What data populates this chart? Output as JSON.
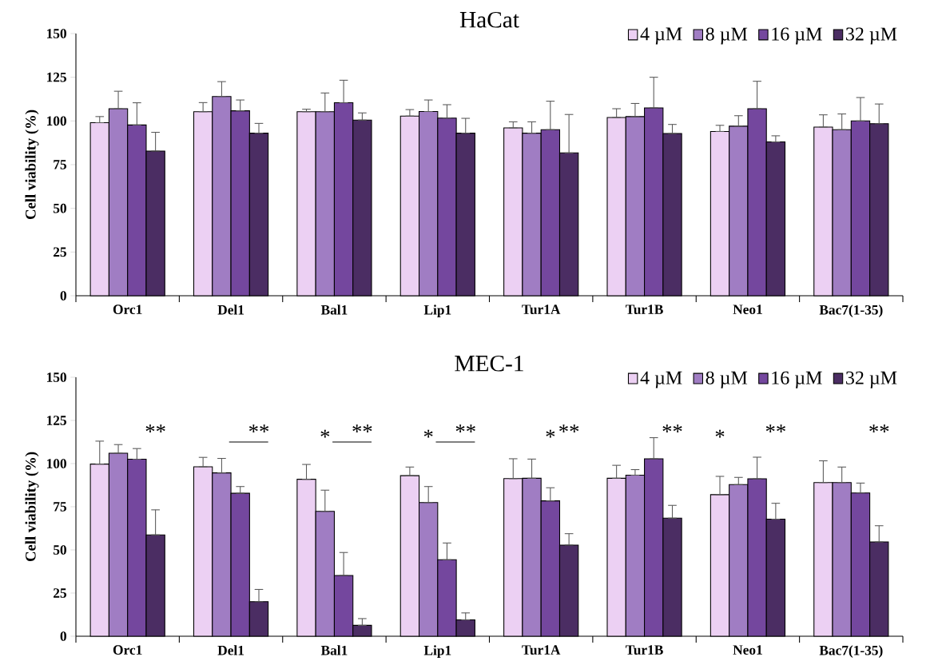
{
  "chart_data": [
    {
      "type": "bar",
      "title": "HaCat",
      "ylabel": "Cell viability (%)",
      "categories": [
        "Orc1",
        "Del1",
        "Bal1",
        "Lip1",
        "Tur1A",
        "Tur1B",
        "Neo1",
        "Bac7(1-35)"
      ],
      "series": [
        {
          "name": "4 µM",
          "color": "#ecd0f3",
          "values": [
            99,
            105.3,
            105.3,
            102.8,
            96,
            102,
            94,
            96.5
          ],
          "errors": [
            [
              99,
              102.5
            ],
            [
              105.3,
              110.5
            ],
            [
              105.3,
              106.7
            ],
            [
              102.8,
              106.5
            ],
            [
              96,
              99.5
            ],
            [
              102,
              107
            ],
            [
              94,
              97.5
            ],
            [
              96.5,
              103.5
            ]
          ]
        },
        {
          "name": "8 µM",
          "color": "#a07dc3",
          "values": [
            107,
            114,
            105.3,
            105.4,
            93,
            102.5,
            97,
            95
          ],
          "errors": [
            [
              107,
              117
            ],
            [
              114,
              122.5
            ],
            [
              105.3,
              116
            ],
            [
              105.4,
              112
            ],
            [
              93,
              99.5
            ],
            [
              102.5,
              110
            ],
            [
              97,
              103
            ],
            [
              95,
              104
            ]
          ]
        },
        {
          "name": "16 µM",
          "color": "#74479e",
          "values": [
            97.7,
            105.8,
            110.4,
            101.6,
            95,
            107.5,
            107,
            100
          ],
          "errors": [
            [
              97.7,
              110.4
            ],
            [
              105.8,
              112
            ],
            [
              110.4,
              123.3
            ],
            [
              101.6,
              109.3
            ],
            [
              95,
              111.3
            ],
            [
              107.5,
              125
            ],
            [
              107,
              122.7
            ],
            [
              100,
              113.4
            ]
          ]
        },
        {
          "name": "32 µM",
          "color": "#4b2d63",
          "values": [
            82.8,
            93,
            100.5,
            93,
            81.7,
            92.8,
            88,
            98.4
          ],
          "errors": [
            [
              82.8,
              93.5
            ],
            [
              93,
              98.6
            ],
            [
              100.5,
              104.6
            ],
            [
              93,
              101.5
            ],
            [
              81.7,
              103.7
            ],
            [
              92.8,
              98
            ],
            [
              88,
              91.5
            ],
            [
              98.4,
              109.7
            ]
          ]
        }
      ],
      "ylim": [
        0,
        150
      ],
      "yticks": [
        0,
        25,
        50,
        75,
        100,
        125,
        150
      ],
      "legend": "top right"
    },
    {
      "type": "bar",
      "title": "MEC-1",
      "ylabel": "Cell viability (%)",
      "categories": [
        "Orc1",
        "Del1",
        "Bal1",
        "Lip1",
        "Tur1A",
        "Tur1B",
        "Neo1",
        "Bac7(1-35)"
      ],
      "series": [
        {
          "name": "4 µM",
          "color": "#ecd0f3",
          "values": [
            99.7,
            98.1,
            90.9,
            93,
            91.3,
            91.5,
            82,
            89
          ],
          "errors": [
            [
              99.7,
              113
            ],
            [
              98.1,
              103.6
            ],
            [
              90.9,
              99.5
            ],
            [
              93,
              98
            ],
            [
              91.3,
              102.8
            ],
            [
              91.5,
              99
            ],
            [
              82,
              92.6
            ],
            [
              89,
              101.6
            ]
          ]
        },
        {
          "name": "8 µM",
          "color": "#a07dc3",
          "values": [
            106,
            94.6,
            72.3,
            77.4,
            91.5,
            93.3,
            87.8,
            89
          ],
          "errors": [
            [
              106,
              111
            ],
            [
              94.6,
              103
            ],
            [
              72.3,
              84.6
            ],
            [
              77.4,
              86.7
            ],
            [
              91.5,
              102.6
            ],
            [
              93.3,
              96.5
            ],
            [
              87.8,
              92
            ],
            [
              89,
              98
            ]
          ]
        },
        {
          "name": "16 µM",
          "color": "#74479e",
          "values": [
            102.5,
            82.8,
            35.2,
            44.3,
            78.4,
            102.8,
            91.2,
            83
          ],
          "errors": [
            [
              102.5,
              108.7
            ],
            [
              82.8,
              86.7
            ],
            [
              35.2,
              48.5
            ],
            [
              44.3,
              54
            ],
            [
              78.4,
              86
            ],
            [
              102.8,
              115
            ],
            [
              91.2,
              103.7
            ],
            [
              83,
              88.7
            ]
          ]
        },
        {
          "name": "32 µM",
          "color": "#4b2d63",
          "values": [
            58.7,
            20,
            6.3,
            9.5,
            52.8,
            68.4,
            67.8,
            54.6
          ],
          "errors": [
            [
              58.7,
              73.2
            ],
            [
              20,
              27.1
            ],
            [
              6.3,
              10.2
            ],
            [
              9.5,
              13.5
            ],
            [
              52.8,
              59.4
            ],
            [
              68.4,
              75.8
            ],
            [
              67.8,
              77
            ],
            [
              54.6,
              64
            ]
          ]
        }
      ],
      "ylim": [
        0,
        150
      ],
      "yticks": [
        0,
        25,
        50,
        75,
        100,
        125,
        150
      ],
      "legend": "top right",
      "annotations": [
        "**",
        "**",
        "*",
        "**",
        "*",
        "**",
        "*",
        "**",
        "**",
        "*",
        "**",
        "**"
      ]
    }
  ]
}
